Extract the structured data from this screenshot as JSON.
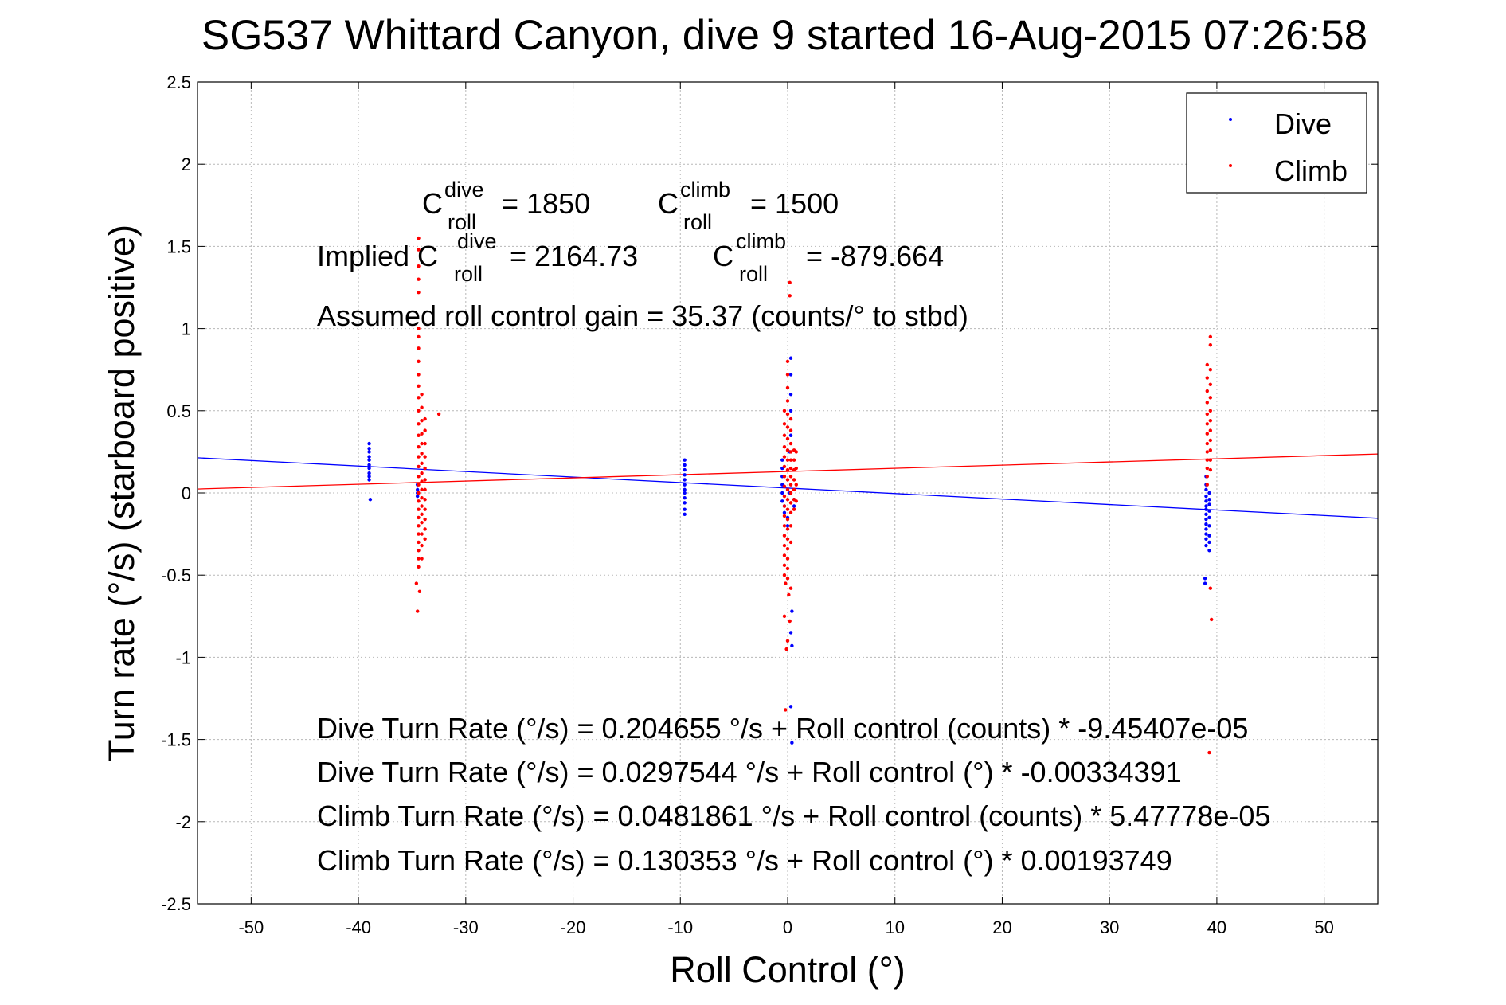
{
  "chart_data": {
    "type": "scatter",
    "title": "SG537 Whittard Canyon, dive 9 started 16-Aug-2015 07:26:58",
    "xlabel": "Roll Control (°)",
    "ylabel": "Turn rate (°/s)  (starboard positive)",
    "xlim": [
      -55,
      55
    ],
    "ylim": [
      -2.5,
      2.5
    ],
    "x_ticks": [
      -50,
      -40,
      -30,
      -20,
      -10,
      0,
      10,
      20,
      30,
      40,
      50
    ],
    "x_tick_labels": [
      "-50",
      "-40",
      "-30",
      "-20",
      "-10",
      "0",
      "10",
      "20",
      "30",
      "40",
      "50"
    ],
    "y_ticks": [
      2.5,
      2,
      1.5,
      1,
      0.5,
      0,
      -0.5,
      -1,
      -1.5,
      -2,
      -2.5
    ],
    "y_tick_labels": [
      "2.5",
      "2",
      "1.5",
      "1",
      "0.5",
      "0",
      "-0.5",
      "-1",
      "-1.5",
      "-2",
      "-2.5"
    ],
    "grid": true,
    "legend_position": "top-right",
    "series": [
      {
        "name": "Dive",
        "color": "#0000ff",
        "points": [
          [
            -39.0,
            0.3
          ],
          [
            -39.0,
            0.27
          ],
          [
            -39.0,
            0.25
          ],
          [
            -39.0,
            0.22
          ],
          [
            -39.0,
            0.2
          ],
          [
            -39.0,
            0.17
          ],
          [
            -39.0,
            0.15
          ],
          [
            -39.0,
            0.12
          ],
          [
            -39.0,
            0.1
          ],
          [
            -39.0,
            0.08
          ],
          [
            -38.9,
            -0.04
          ],
          [
            -34.5,
            0.05
          ],
          [
            -34.5,
            0.02
          ],
          [
            -34.5,
            0.0
          ],
          [
            -34.5,
            -0.02
          ],
          [
            -9.6,
            0.2
          ],
          [
            -9.6,
            0.17
          ],
          [
            -9.6,
            0.14
          ],
          [
            -9.6,
            0.11
          ],
          [
            -9.6,
            0.08
          ],
          [
            -9.6,
            0.05
          ],
          [
            -9.6,
            0.02
          ],
          [
            -9.6,
            0.0
          ],
          [
            -9.6,
            -0.03
          ],
          [
            -9.6,
            -0.06
          ],
          [
            -9.6,
            -0.1
          ],
          [
            -9.6,
            -0.13
          ],
          [
            -0.5,
            0.2
          ],
          [
            -0.5,
            0.15
          ],
          [
            -0.5,
            0.1
          ],
          [
            -0.5,
            0.05
          ],
          [
            -0.5,
            0.0
          ],
          [
            -0.5,
            -0.05
          ],
          [
            -0.3,
            -0.08
          ],
          [
            -0.3,
            -0.12
          ],
          [
            0.0,
            -0.15
          ],
          [
            0.0,
            -0.2
          ],
          [
            0.3,
            0.82
          ],
          [
            0.3,
            0.72
          ],
          [
            0.3,
            0.6
          ],
          [
            0.3,
            0.5
          ],
          [
            0.3,
            0.35
          ],
          [
            0.2,
            0.25
          ],
          [
            0.2,
            0.0
          ],
          [
            0.4,
            -0.72
          ],
          [
            0.3,
            -0.85
          ],
          [
            0.4,
            -0.93
          ],
          [
            0.3,
            -1.3
          ],
          [
            0.4,
            -1.52
          ],
          [
            0.6,
            -0.04
          ],
          [
            0.6,
            -0.08
          ],
          [
            39.0,
            0.1
          ],
          [
            39.0,
            0.05
          ],
          [
            39.0,
            0.02
          ],
          [
            39.0,
            -0.02
          ],
          [
            39.0,
            -0.05
          ],
          [
            39.0,
            -0.08
          ],
          [
            39.0,
            -0.1
          ],
          [
            39.0,
            -0.13
          ],
          [
            39.0,
            -0.16
          ],
          [
            39.0,
            -0.19
          ],
          [
            39.0,
            -0.22
          ],
          [
            39.0,
            -0.25
          ],
          [
            39.0,
            -0.28
          ],
          [
            39.0,
            -0.32
          ],
          [
            39.3,
            0.0
          ],
          [
            39.3,
            -0.04
          ],
          [
            39.3,
            -0.07
          ],
          [
            39.3,
            -0.11
          ],
          [
            39.3,
            -0.15
          ],
          [
            39.3,
            -0.2
          ],
          [
            39.3,
            -0.26
          ],
          [
            39.3,
            -0.3
          ],
          [
            39.3,
            -0.35
          ],
          [
            38.9,
            -0.52
          ],
          [
            38.9,
            -0.55
          ]
        ]
      },
      {
        "name": "Climb",
        "color": "#ff0000",
        "points": [
          [
            -34.4,
            1.55
          ],
          [
            -34.4,
            1.48
          ],
          [
            -34.4,
            1.38
          ],
          [
            -34.4,
            1.3
          ],
          [
            -34.4,
            1.22
          ],
          [
            -34.4,
            1.0
          ],
          [
            -34.4,
            0.95
          ],
          [
            -34.4,
            0.88
          ],
          [
            -34.4,
            0.8
          ],
          [
            -34.4,
            0.72
          ],
          [
            -34.4,
            0.65
          ],
          [
            -34.4,
            0.58
          ],
          [
            -34.4,
            0.5
          ],
          [
            -34.4,
            0.42
          ],
          [
            -34.4,
            0.35
          ],
          [
            -34.4,
            0.28
          ],
          [
            -34.4,
            0.22
          ],
          [
            -34.4,
            0.16
          ],
          [
            -34.4,
            0.1
          ],
          [
            -34.4,
            0.05
          ],
          [
            -34.4,
            0.0
          ],
          [
            -34.4,
            -0.05
          ],
          [
            -34.4,
            -0.1
          ],
          [
            -34.4,
            -0.15
          ],
          [
            -34.4,
            -0.2
          ],
          [
            -34.4,
            -0.25
          ],
          [
            -34.4,
            -0.3
          ],
          [
            -34.4,
            -0.35
          ],
          [
            -34.4,
            -0.4
          ],
          [
            -34.4,
            -0.45
          ],
          [
            -34.1,
            0.6
          ],
          [
            -34.1,
            0.52
          ],
          [
            -34.1,
            0.44
          ],
          [
            -34.1,
            0.36
          ],
          [
            -34.1,
            0.3
          ],
          [
            -34.1,
            0.24
          ],
          [
            -34.1,
            0.18
          ],
          [
            -34.1,
            0.12
          ],
          [
            -34.1,
            0.07
          ],
          [
            -34.1,
            0.02
          ],
          [
            -34.1,
            -0.03
          ],
          [
            -34.1,
            -0.08
          ],
          [
            -34.1,
            -0.13
          ],
          [
            -34.1,
            -0.18
          ],
          [
            -34.1,
            -0.25
          ],
          [
            -34.1,
            -0.32
          ],
          [
            -34.1,
            -0.4
          ],
          [
            -33.8,
            0.45
          ],
          [
            -33.8,
            0.38
          ],
          [
            -33.8,
            0.3
          ],
          [
            -33.8,
            0.22
          ],
          [
            -33.8,
            0.15
          ],
          [
            -33.8,
            0.08
          ],
          [
            -33.8,
            0.02
          ],
          [
            -33.8,
            -0.04
          ],
          [
            -33.8,
            -0.1
          ],
          [
            -33.8,
            -0.16
          ],
          [
            -33.8,
            -0.22
          ],
          [
            -33.8,
            -0.28
          ],
          [
            -34.6,
            -0.55
          ],
          [
            -34.3,
            -0.6
          ],
          [
            -34.5,
            -0.72
          ],
          [
            -32.5,
            0.48
          ],
          [
            -0.3,
            0.5
          ],
          [
            -0.3,
            0.42
          ],
          [
            -0.3,
            0.35
          ],
          [
            -0.3,
            0.28
          ],
          [
            -0.3,
            0.22
          ],
          [
            -0.3,
            0.16
          ],
          [
            -0.3,
            0.1
          ],
          [
            -0.3,
            0.04
          ],
          [
            -0.3,
            -0.02
          ],
          [
            -0.3,
            -0.08
          ],
          [
            -0.3,
            -0.14
          ],
          [
            -0.3,
            -0.2
          ],
          [
            -0.3,
            -0.26
          ],
          [
            -0.3,
            -0.32
          ],
          [
            -0.3,
            -0.38
          ],
          [
            -0.3,
            -0.44
          ],
          [
            -0.3,
            -0.5
          ],
          [
            0.0,
            0.8
          ],
          [
            0.0,
            0.72
          ],
          [
            0.0,
            0.64
          ],
          [
            0.0,
            0.56
          ],
          [
            0.0,
            0.48
          ],
          [
            0.0,
            0.4
          ],
          [
            0.0,
            0.33
          ],
          [
            0.0,
            0.26
          ],
          [
            0.0,
            0.2
          ],
          [
            0.0,
            0.14
          ],
          [
            0.0,
            0.08
          ],
          [
            0.0,
            0.02
          ],
          [
            0.0,
            -0.04
          ],
          [
            0.0,
            -0.1
          ],
          [
            0.0,
            -0.16
          ],
          [
            0.0,
            -0.22
          ],
          [
            0.0,
            -0.28
          ],
          [
            0.0,
            -0.34
          ],
          [
            0.0,
            -0.4
          ],
          [
            0.0,
            -0.46
          ],
          [
            0.0,
            -0.52
          ],
          [
            0.3,
            0.45
          ],
          [
            0.3,
            0.38
          ],
          [
            0.3,
            0.3
          ],
          [
            0.3,
            0.25
          ],
          [
            0.3,
            0.2
          ],
          [
            0.3,
            0.15
          ],
          [
            0.3,
            0.1
          ],
          [
            0.3,
            0.05
          ],
          [
            0.3,
            0.0
          ],
          [
            0.3,
            -0.06
          ],
          [
            0.3,
            -0.12
          ],
          [
            0.3,
            -0.2
          ],
          [
            0.3,
            -0.3
          ],
          [
            0.6,
            0.26
          ],
          [
            0.6,
            0.2
          ],
          [
            0.6,
            0.14
          ],
          [
            0.6,
            0.08
          ],
          [
            0.6,
            0.02
          ],
          [
            0.6,
            -0.04
          ],
          [
            0.6,
            -0.1
          ],
          [
            0.8,
            0.25
          ],
          [
            0.8,
            0.15
          ],
          [
            0.8,
            0.05
          ],
          [
            0.8,
            -0.05
          ],
          [
            0.2,
            1.28
          ],
          [
            0.2,
            1.2
          ],
          [
            -0.2,
            -0.55
          ],
          [
            0.1,
            -0.62
          ],
          [
            0.3,
            -0.58
          ],
          [
            -0.3,
            -0.75
          ],
          [
            0.2,
            -0.78
          ],
          [
            -0.1,
            -0.95
          ],
          [
            0.0,
            -0.9
          ],
          [
            -0.2,
            -1.32
          ],
          [
            39.1,
            0.78
          ],
          [
            39.1,
            0.7
          ],
          [
            39.1,
            0.62
          ],
          [
            39.1,
            0.55
          ],
          [
            39.1,
            0.48
          ],
          [
            39.1,
            0.42
          ],
          [
            39.1,
            0.36
          ],
          [
            39.1,
            0.3
          ],
          [
            39.1,
            0.25
          ],
          [
            39.1,
            0.2
          ],
          [
            39.1,
            0.15
          ],
          [
            39.1,
            0.1
          ],
          [
            39.1,
            0.05
          ],
          [
            39.4,
            0.95
          ],
          [
            39.4,
            0.9
          ],
          [
            39.4,
            0.75
          ],
          [
            39.4,
            0.66
          ],
          [
            39.4,
            0.58
          ],
          [
            39.4,
            0.5
          ],
          [
            39.4,
            0.44
          ],
          [
            39.4,
            0.38
          ],
          [
            39.4,
            0.32
          ],
          [
            39.4,
            0.26
          ],
          [
            39.4,
            0.2
          ],
          [
            39.4,
            0.14
          ],
          [
            39.4,
            -0.58
          ],
          [
            39.5,
            -0.77
          ],
          [
            39.3,
            -1.58
          ]
        ]
      }
    ],
    "fit_lines": [
      {
        "name": "Dive fit",
        "color": "#0000ff",
        "intercept": 0.0297544,
        "slope": -0.00334391
      },
      {
        "name": "Climb fit",
        "color": "#ff0000",
        "intercept": 0.130353,
        "slope": 0.00193749
      }
    ],
    "annotations": {
      "c_roll_dive_base": "C",
      "c_roll_sup_dive": "dive",
      "c_roll_sub": "roll",
      "c_roll_dive_value": "= 1850",
      "c_roll_climb_base": "C",
      "c_roll_sup_climb": "climb",
      "c_roll_climb_value": "= 1500",
      "implied_prefix": "Implied C",
      "implied_dive_value": "= 2164.73",
      "implied_climb_value": "= -879.664",
      "gain": "Assumed roll control gain = 35.37 (counts/° to stbd)",
      "dive_counts": "Dive Turn Rate (°/s) = 0.204655 °/s + Roll control (counts) * -9.45407e-05",
      "dive_degrees": "Dive Turn Rate (°/s) = 0.0297544 °/s + Roll control (°) * -0.00334391",
      "climb_counts": "Climb Turn Rate (°/s) = 0.0481861 °/s + Roll control (counts) * 5.47778e-05",
      "climb_degrees": "Climb Turn Rate (°/s) = 0.130353 °/s + Roll control (°) * 0.00193749"
    }
  }
}
